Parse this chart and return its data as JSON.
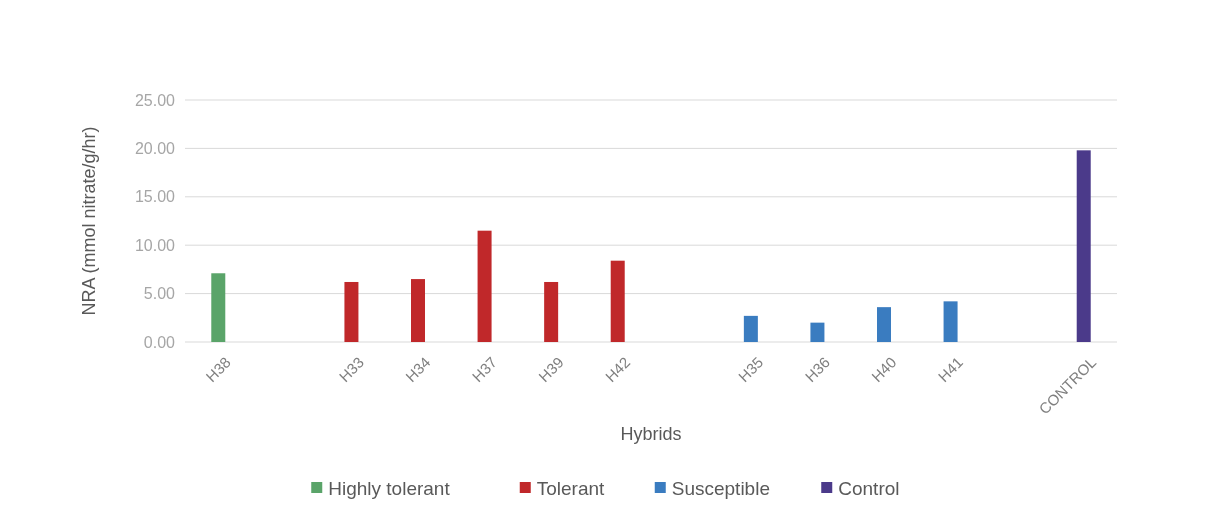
{
  "chart_data": {
    "type": "bar",
    "xlabel": "Hybrids",
    "ylabel": "NRA (mmol nitrate/g/hr)",
    "categories": [
      "H38",
      null,
      "H33",
      "H34",
      "H37",
      "H39",
      "H42",
      null,
      "H35",
      "H36",
      "H40",
      "H41",
      null,
      "CONTROL"
    ],
    "series": [
      {
        "name": "Highly tolerant",
        "color": "#5aa469",
        "values": [
          7.1,
          null,
          null,
          null,
          null,
          null,
          null,
          null,
          null,
          null,
          null,
          null,
          null,
          null
        ]
      },
      {
        "name": "Tolerant",
        "color": "#c0282a",
        "values": [
          null,
          null,
          6.2,
          6.5,
          11.5,
          6.2,
          8.4,
          null,
          null,
          null,
          null,
          null,
          null,
          null
        ]
      },
      {
        "name": "Susceptible",
        "color": "#3a7cc0",
        "values": [
          null,
          null,
          null,
          null,
          null,
          null,
          null,
          null,
          2.7,
          2.0,
          3.6,
          4.2,
          null,
          null
        ]
      },
      {
        "name": "Control",
        "color": "#4b3a8a",
        "values": [
          null,
          null,
          null,
          null,
          null,
          null,
          null,
          null,
          null,
          null,
          null,
          null,
          null,
          19.8
        ]
      }
    ],
    "ylim": [
      0,
      25
    ],
    "yticks": [
      {
        "value": 0,
        "label": "0.00"
      },
      {
        "value": 5,
        "label": "5.00"
      },
      {
        "value": 10,
        "label": "10.00"
      },
      {
        "value": 15,
        "label": "15.00"
      },
      {
        "value": 20,
        "label": "20.00"
      },
      {
        "value": 25,
        "label": "25.00"
      }
    ],
    "grid": "y",
    "legend": "bottom"
  }
}
